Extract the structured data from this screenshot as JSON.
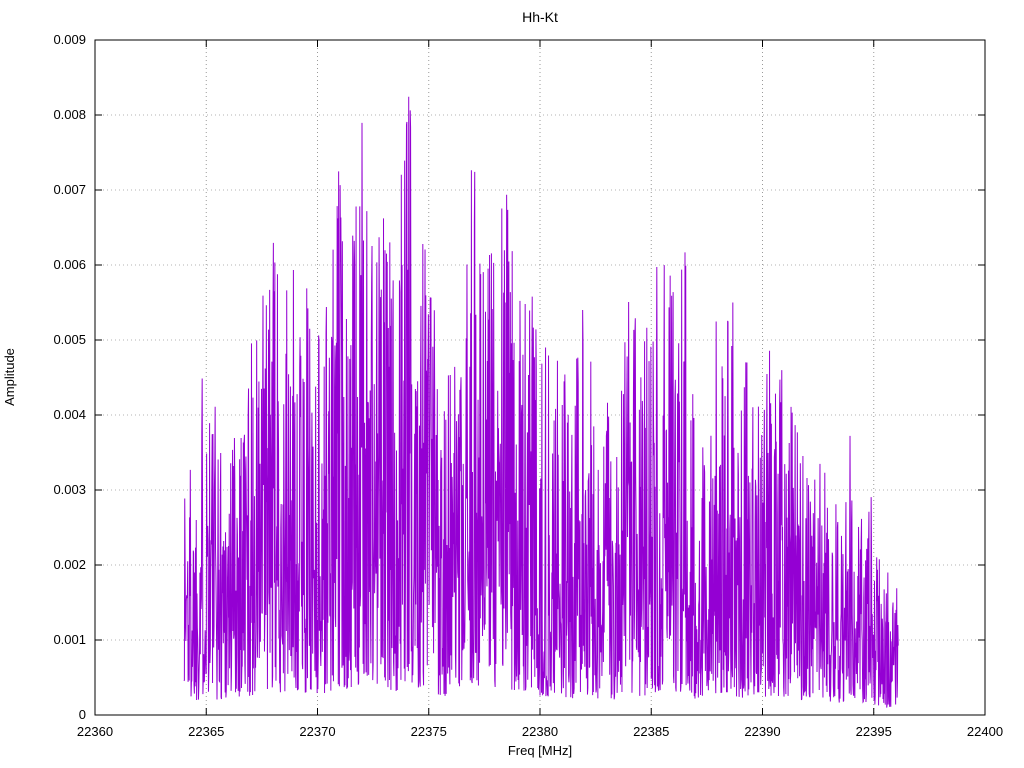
{
  "chart_data": {
    "type": "line",
    "title": "Hh-Kt",
    "xlabel": "Freq [MHz]",
    "ylabel": "Amplitude",
    "xlim": [
      22360,
      22400
    ],
    "ylim": [
      0,
      0.009
    ],
    "grid": true,
    "legend": "none",
    "line_color": "#9400d3",
    "grid_color": "#9a9a9a",
    "border_color": "#000000",
    "x_ticks": [
      22360,
      22365,
      22370,
      22375,
      22380,
      22385,
      22390,
      22395,
      22400
    ],
    "x_tick_labels": [
      "22360",
      "22365",
      "22370",
      "22375",
      "22380",
      "22385",
      "22390",
      "22395",
      "22400"
    ],
    "y_ticks": [
      0,
      0.001,
      0.002,
      0.003,
      0.004,
      0.005,
      0.006,
      0.007,
      0.008,
      0.009
    ],
    "y_tick_labels": [
      "0",
      "0.001",
      "0.002",
      "0.003",
      "0.004",
      "0.005",
      "0.006",
      "0.007",
      "0.008",
      "0.009"
    ],
    "signal": {
      "description": "dense noise-like amplitude spectrum occupying 22364-22396 MHz; values fluctuate between ~0.0003 and the peak envelope below",
      "x_start": 22364.0,
      "x_end": 22396.1,
      "points_per_mhz": 60,
      "baseline_fraction": 0.05,
      "noise_exponent": 1.6,
      "seed": 1337,
      "envelope": [
        [
          22364.0,
          0.004
        ],
        [
          22364.5,
          0.0034
        ],
        [
          22365.0,
          0.0056
        ],
        [
          22365.5,
          0.004
        ],
        [
          22366.0,
          0.0039
        ],
        [
          22366.5,
          0.0047
        ],
        [
          22367.0,
          0.005
        ],
        [
          22367.5,
          0.0057
        ],
        [
          22368.0,
          0.0064
        ],
        [
          22368.5,
          0.0056
        ],
        [
          22369.0,
          0.006
        ],
        [
          22369.5,
          0.0058
        ],
        [
          22370.0,
          0.0055
        ],
        [
          22370.5,
          0.006
        ],
        [
          22371.0,
          0.0076
        ],
        [
          22371.5,
          0.0064
        ],
        [
          22372.0,
          0.0079
        ],
        [
          22372.5,
          0.007
        ],
        [
          22373.0,
          0.007
        ],
        [
          22373.5,
          0.0062
        ],
        [
          22374.0,
          0.0089
        ],
        [
          22374.5,
          0.0074
        ],
        [
          22375.0,
          0.0066
        ],
        [
          22375.5,
          0.0052
        ],
        [
          22376.0,
          0.0048
        ],
        [
          22376.5,
          0.0045
        ],
        [
          22377.0,
          0.008
        ],
        [
          22377.5,
          0.006
        ],
        [
          22378.0,
          0.0074
        ],
        [
          22378.5,
          0.0074
        ],
        [
          22379.0,
          0.0055
        ],
        [
          22379.5,
          0.0064
        ],
        [
          22380.0,
          0.0051
        ],
        [
          22380.5,
          0.0048
        ],
        [
          22381.0,
          0.0048
        ],
        [
          22381.5,
          0.0044
        ],
        [
          22382.0,
          0.0057
        ],
        [
          22382.5,
          0.004
        ],
        [
          22383.0,
          0.0042
        ],
        [
          22383.5,
          0.0038
        ],
        [
          22384.0,
          0.0058
        ],
        [
          22384.5,
          0.005
        ],
        [
          22385.0,
          0.0055
        ],
        [
          22385.5,
          0.0069
        ],
        [
          22386.0,
          0.0059
        ],
        [
          22386.5,
          0.0064
        ],
        [
          22387.0,
          0.0042
        ],
        [
          22387.5,
          0.004
        ],
        [
          22388.0,
          0.0058
        ],
        [
          22388.5,
          0.0061
        ],
        [
          22389.0,
          0.0044
        ],
        [
          22389.5,
          0.0055
        ],
        [
          22390.0,
          0.0047
        ],
        [
          22390.5,
          0.0053
        ],
        [
          22391.0,
          0.0045
        ],
        [
          22391.5,
          0.004
        ],
        [
          22392.0,
          0.0032
        ],
        [
          22392.5,
          0.0035
        ],
        [
          22393.0,
          0.0034
        ],
        [
          22393.5,
          0.0033
        ],
        [
          22394.0,
          0.004
        ],
        [
          22394.5,
          0.003
        ],
        [
          22395.0,
          0.0029
        ],
        [
          22395.5,
          0.002
        ],
        [
          22396.0,
          0.0018
        ]
      ]
    }
  }
}
